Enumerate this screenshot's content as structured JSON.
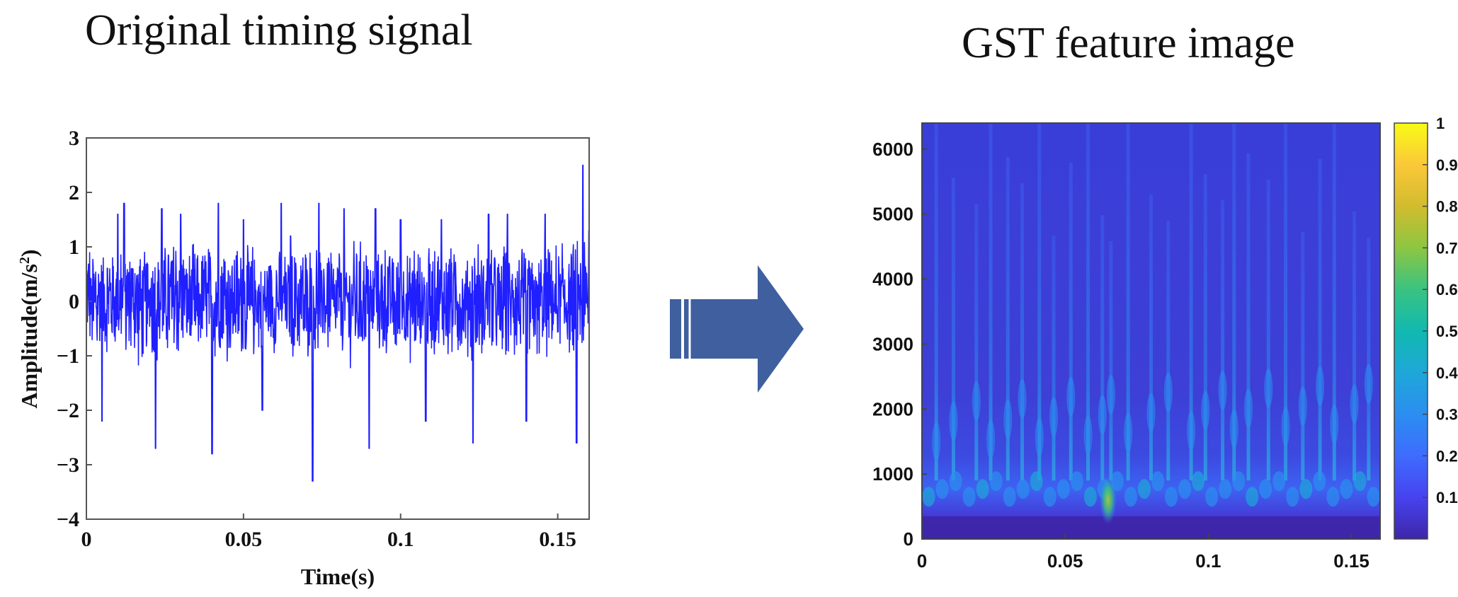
{
  "panel_left": {
    "title": "Original timing signal"
  },
  "panel_right": {
    "title": "GST feature image"
  },
  "arrow_icon": "right-arrow-icon",
  "chart_data": [
    {
      "type": "line",
      "title": "Original timing signal",
      "xlabel": "Time(s)",
      "ylabel_prefix": "Amplitude(m/s",
      "ylabel_sup": "2",
      "ylabel_suffix": ")",
      "xlim": [
        0,
        0.16
      ],
      "ylim": [
        -4,
        3
      ],
      "xticks": [
        0,
        0.05,
        0.1,
        0.15
      ],
      "xtick_labels": [
        "0",
        "0.05",
        "0.1",
        "0.15"
      ],
      "yticks": [
        -4,
        -3,
        -2,
        -1,
        0,
        1,
        2,
        3
      ],
      "ytick_labels": [
        "−4",
        "−3",
        "−2",
        "−1",
        "0",
        "1",
        "2",
        "3"
      ],
      "line_color": "#1f1fff",
      "series": [
        {
          "x": [
            0.005,
            0.01,
            0.012,
            0.022,
            0.024,
            0.03,
            0.04,
            0.042,
            0.05,
            0.056,
            0.062,
            0.065,
            0.072,
            0.074,
            0.082,
            0.09,
            0.092,
            0.1,
            0.108,
            0.113,
            0.123,
            0.128,
            0.134,
            0.14,
            0.146,
            0.156,
            0.158,
            0.16
          ],
          "values": [
            -2.2,
            1.6,
            1.8,
            -2.7,
            1.7,
            1.6,
            -2.8,
            1.8,
            1.5,
            -2.0,
            1.8,
            1.2,
            -3.3,
            1.8,
            1.7,
            -2.7,
            1.7,
            1.5,
            -2.2,
            1.5,
            -2.6,
            1.6,
            1.6,
            -2.2,
            1.6,
            -2.6,
            2.5,
            1.3
          ]
        }
      ]
    },
    {
      "type": "heatmap",
      "title": "GST feature image",
      "xlim": [
        0,
        0.16
      ],
      "ylim": [
        0,
        6400
      ],
      "xticks": [
        0,
        0.05,
        0.1,
        0.15
      ],
      "xtick_labels": [
        "0",
        "0.05",
        "0.1",
        "0.15"
      ],
      "yticks": [
        0,
        1000,
        2000,
        3000,
        4000,
        5000,
        6000
      ],
      "ytick_labels": [
        "0",
        "1000",
        "2000",
        "3000",
        "4000",
        "5000",
        "6000"
      ],
      "colorbar": {
        "range": [
          0,
          1
        ],
        "ticks": [
          0.1,
          0.2,
          0.3,
          0.4,
          0.5,
          0.6,
          0.7,
          0.8,
          0.9,
          1
        ],
        "tick_labels": [
          "0.1",
          "0.2",
          "0.3",
          "0.4",
          "0.5",
          "0.6",
          "0.7",
          "0.8",
          "0.9",
          "1"
        ],
        "colormap": "parula",
        "colors": [
          "#3e26a8",
          "#4743f0",
          "#3e6cfe",
          "#2b8ef0",
          "#1ea7d8",
          "#11b9b0",
          "#39c381",
          "#8dc642",
          "#d1bc2e",
          "#fbc839",
          "#f9fb15"
        ]
      },
      "background_color": "#3d39d6",
      "bright_columns_x": [
        0.005,
        0.011,
        0.019,
        0.024,
        0.03,
        0.035,
        0.041,
        0.046,
        0.052,
        0.058,
        0.063,
        0.066,
        0.072,
        0.08,
        0.086,
        0.094,
        0.099,
        0.105,
        0.109,
        0.114,
        0.121,
        0.127,
        0.133,
        0.139,
        0.144,
        0.151,
        0.156
      ],
      "hotspot": {
        "x": 0.065,
        "y": 600,
        "value": 0.6
      }
    }
  ]
}
